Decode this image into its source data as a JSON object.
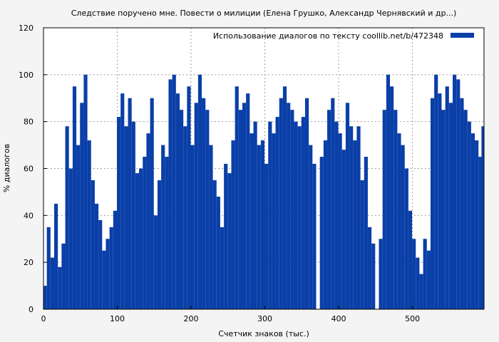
{
  "chart_data": {
    "type": "bar",
    "title": "Следствие поручено мне. Повести о милиции (Елена Грушко, Александр Чернявский и др...)",
    "xlabel": "Счетчик знаков (тыс.)",
    "ylabel": "% диалогов",
    "xlim": [
      0,
      597
    ],
    "ylim": [
      0,
      120
    ],
    "xticks": [
      0,
      100,
      200,
      300,
      400,
      500
    ],
    "yticks": [
      0,
      20,
      40,
      60,
      80,
      100,
      120
    ],
    "grid": true,
    "legend_position": "top-right",
    "series": [
      {
        "name": "Использование диалогов по тексту  coollib.net/b/472348",
        "color": "#0a3fa8",
        "x_step": 5,
        "x": [
          2,
          7,
          12,
          17,
          22,
          27,
          32,
          37,
          42,
          47,
          52,
          57,
          62,
          67,
          72,
          77,
          82,
          87,
          92,
          97,
          102,
          107,
          112,
          117,
          122,
          127,
          132,
          137,
          142,
          147,
          152,
          157,
          162,
          167,
          172,
          177,
          182,
          187,
          192,
          197,
          202,
          207,
          212,
          217,
          222,
          227,
          232,
          237,
          242,
          247,
          252,
          257,
          262,
          267,
          272,
          277,
          282,
          287,
          292,
          297,
          302,
          307,
          312,
          317,
          322,
          327,
          332,
          337,
          342,
          347,
          352,
          357,
          362,
          367,
          372,
          377,
          382,
          387,
          392,
          397,
          402,
          407,
          412,
          417,
          422,
          427,
          432,
          437,
          442,
          447,
          452,
          457,
          462,
          467,
          472,
          477,
          482,
          487,
          492,
          497,
          502,
          507,
          512,
          517,
          522,
          527,
          532,
          537,
          542,
          547,
          552,
          557,
          562,
          567,
          572,
          577,
          582,
          587,
          592,
          596
        ],
        "values": [
          10,
          35,
          22,
          45,
          18,
          28,
          78,
          60,
          95,
          70,
          88,
          100,
          72,
          55,
          45,
          38,
          25,
          30,
          35,
          42,
          82,
          92,
          78,
          90,
          80,
          58,
          60,
          65,
          75,
          90,
          40,
          55,
          70,
          65,
          98,
          100,
          92,
          85,
          78,
          95,
          70,
          88,
          100,
          90,
          85,
          70,
          55,
          48,
          35,
          62,
          58,
          72,
          95,
          85,
          88,
          92,
          75,
          80,
          70,
          72,
          62,
          80,
          75,
          82,
          90,
          95,
          88,
          85,
          80,
          78,
          82,
          90,
          70,
          62,
          0,
          65,
          72,
          85,
          90,
          80,
          75,
          68,
          88,
          78,
          72,
          78,
          55,
          65,
          35,
          28,
          0,
          30,
          85,
          100,
          95,
          85,
          75,
          70,
          60,
          42,
          30,
          22,
          15,
          30,
          25,
          90,
          100,
          92,
          85,
          95,
          88,
          100,
          98,
          90,
          85,
          80,
          75,
          72,
          65,
          78
        ]
      }
    ]
  }
}
